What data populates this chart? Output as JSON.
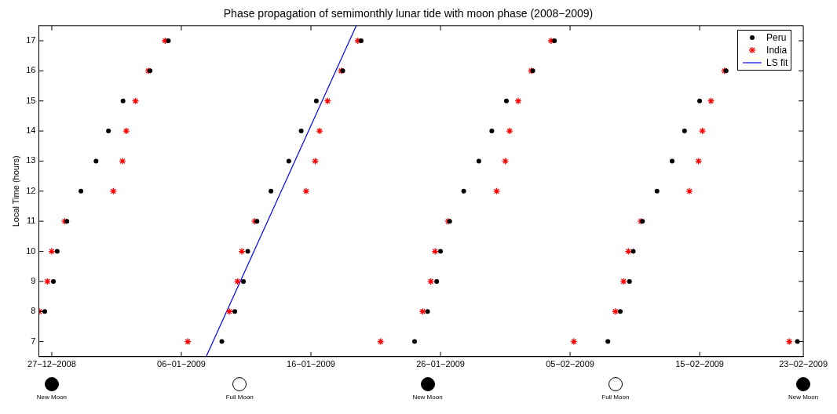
{
  "chart_data": {
    "type": "scatter",
    "title": "Phase propagation of semimonthly lunar tide with moon phase (2008−2009)",
    "ylabel": "Local Time (hours)",
    "xlim": [
      "2008-12-26",
      "2009-02-23"
    ],
    "xticks": [
      {
        "value": "2008-12-27",
        "label": "27−12−2008"
      },
      {
        "value": "2009-01-06",
        "label": "06−01−2009"
      },
      {
        "value": "2009-01-16",
        "label": "16−01−2009"
      },
      {
        "value": "2009-01-26",
        "label": "26−01−2009"
      },
      {
        "value": "2009-02-05",
        "label": "05−02−2009"
      },
      {
        "value": "2009-02-15",
        "label": "15−02−2009"
      },
      {
        "value": "2009-02-23",
        "label": "23−02−2009"
      }
    ],
    "ylim": [
      6.5,
      17.5
    ],
    "yticks": [
      7,
      8,
      9,
      10,
      11,
      12,
      13,
      14,
      15,
      16,
      17
    ],
    "grid": false,
    "legend": "top right",
    "series": [
      {
        "name": "Peru",
        "color": "#000000",
        "marker": "circle",
        "x": [
          "2008-12-26T11:00",
          "2008-12-27T03:00",
          "2008-12-27T10:00",
          "2008-12-28T04:00",
          "2008-12-29T06:00",
          "2008-12-30T10:00",
          "2008-12-31T09:00",
          "2009-01-01T12:00",
          "2009-01-03T14:00",
          "2009-01-05T00:00",
          "2009-01-09T03:00",
          "2009-01-10T03:00",
          "2009-01-10T19:00",
          "2009-01-11T03:00",
          "2009-01-11T20:00",
          "2009-01-12T22:00",
          "2009-01-14T07:00",
          "2009-01-15T06:00",
          "2009-01-16T10:00",
          "2009-01-18T11:00",
          "2009-01-19T21:00",
          "2009-01-24T00:00",
          "2009-01-25T00:00",
          "2009-01-25T17:00",
          "2009-01-26T00:00",
          "2009-01-26T17:00",
          "2009-01-27T19:00",
          "2009-01-28T23:00",
          "2009-01-29T23:00",
          "2009-01-31T02:00",
          "2009-02-02T03:00",
          "2009-02-03T19:00",
          "2009-02-07T22:00",
          "2009-02-08T21:00",
          "2009-02-09T14:00",
          "2009-02-09T21:00",
          "2009-02-10T14:00",
          "2009-02-11T17:00",
          "2009-02-12T21:00",
          "2009-02-13T20:00",
          "2009-02-15T00:00",
          "2009-02-17T01:00",
          "2009-02-22T13:00"
        ],
        "values": [
          8,
          9,
          10,
          11,
          12,
          13,
          14,
          15,
          16,
          17,
          7,
          8,
          9,
          10,
          11,
          12,
          13,
          14,
          15,
          16,
          17,
          7,
          8,
          9,
          10,
          11,
          12,
          13,
          14,
          15,
          16,
          17,
          7,
          8,
          9,
          10,
          11,
          12,
          13,
          14,
          15,
          16,
          7
        ]
      },
      {
        "name": "India",
        "color": "#ff0000",
        "marker": "cross",
        "x": [
          "2008-12-26T01:00",
          "2008-12-26T16:00",
          "2008-12-27T00:00",
          "2008-12-28T00:00",
          "2008-12-31T18:00",
          "2009-01-01T11:00",
          "2009-01-01T18:00",
          "2009-01-02T11:00",
          "2009-01-03T11:00",
          "2009-01-04T18:00",
          "2009-01-06T12:00",
          "2009-01-09T17:00",
          "2009-01-10T08:00",
          "2009-01-10T16:00",
          "2009-01-11T16:00",
          "2009-01-15T15:00",
          "2009-01-16T08:00",
          "2009-01-16T16:00",
          "2009-01-17T07:00",
          "2009-01-18T08:00",
          "2009-01-19T15:00",
          "2009-01-21T09:00",
          "2009-01-24T15:00",
          "2009-01-25T06:00",
          "2009-01-25T14:00",
          "2009-01-26T14:00",
          "2009-01-30T08:00",
          "2009-01-31T00:00",
          "2009-01-31T08:00",
          "2009-02-01T00:00",
          "2009-02-02T00:00",
          "2009-02-03T13:00",
          "2009-02-05T07:00",
          "2009-02-08T12:00",
          "2009-02-09T03:00",
          "2009-02-09T12:00",
          "2009-02-10T11:00",
          "2009-02-14T05:00",
          "2009-02-14T22:00",
          "2009-02-15T05:00",
          "2009-02-15T21:00",
          "2009-02-16T22:00",
          "2009-02-21T22:00"
        ],
        "values": [
          8,
          9,
          10,
          11,
          12,
          13,
          14,
          15,
          16,
          17,
          7,
          8,
          9,
          10,
          11,
          12,
          13,
          14,
          15,
          16,
          17,
          7,
          8,
          9,
          10,
          11,
          12,
          13,
          14,
          15,
          16,
          17,
          7,
          8,
          9,
          10,
          11,
          12,
          13,
          14,
          15,
          16,
          7
        ]
      },
      {
        "name": "LS fit",
        "type": "line",
        "color": "#0000ff",
        "marker": "none",
        "line_style": "solid",
        "x": [
          "2009-01-07T22:00",
          "2009-01-19T12:00"
        ],
        "values": [
          6.5,
          17.5
        ]
      }
    ],
    "annotations": [
      "New Moon",
      "Full Moon",
      "New Moon",
      "Full Moon",
      "New Moon"
    ]
  }
}
